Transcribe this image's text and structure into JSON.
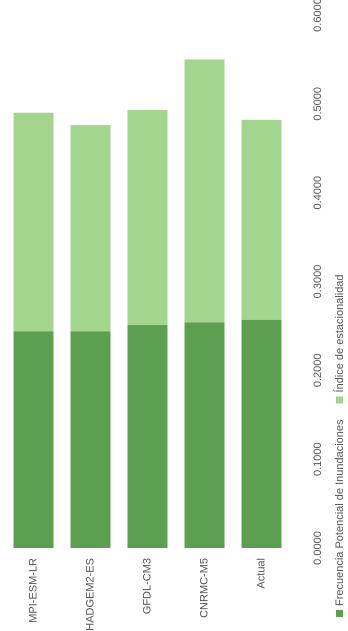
{
  "chart_data": {
    "type": "bar",
    "stacked": true,
    "categories": [
      "MPI-ESM-LR",
      "HADGEM2-ES",
      "GFDL-CM3",
      "CNRMC-M5",
      "Actual"
    ],
    "series": [
      {
        "name": "Frecuencia Potencial de Inundaciones",
        "color": "#5c9f50",
        "values": [
          0.244,
          0.244,
          0.251,
          0.254,
          0.257
        ]
      },
      {
        "name": "Índice de estacionalidad",
        "color": "#a4d58f",
        "values": [
          0.246,
          0.232,
          0.242,
          0.296,
          0.225
        ]
      }
    ],
    "ylim": [
      0,
      0.6
    ],
    "yticks": [
      {
        "value": 0,
        "label": "0.0000"
      },
      {
        "value": 0.1,
        "label": "0.1000"
      },
      {
        "value": 0.2,
        "label": "0.2000"
      },
      {
        "value": 0.3,
        "label": "0.3000"
      },
      {
        "value": 0.4,
        "label": "0.4000"
      },
      {
        "value": 0.5,
        "label": "0.5000"
      },
      {
        "value": 0.6,
        "label": "0.6000"
      }
    ],
    "grid": false
  }
}
